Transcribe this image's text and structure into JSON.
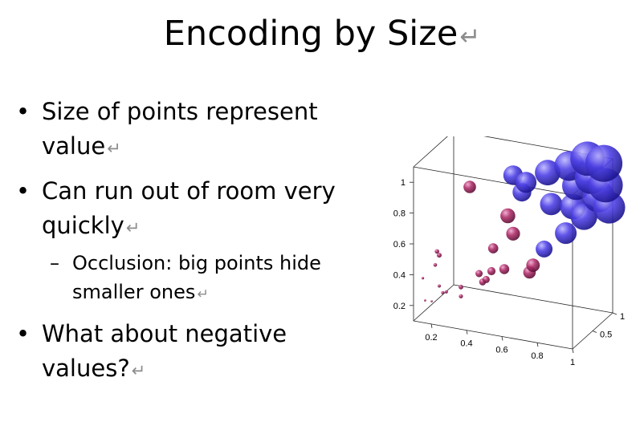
{
  "slide": {
    "title": "Encoding by Size",
    "return_glyph": "↵",
    "bullets": [
      {
        "text": "Size of points represent value"
      },
      {
        "text": "Can run out of room very quickly"
      },
      {
        "text": "Occlusion: big points hide smaller ones",
        "level": 2
      },
      {
        "text": "What about negative values?"
      }
    ],
    "bullet_glyph": "•",
    "sub_glyph": "–"
  },
  "chart_data": {
    "type": "scatter",
    "title": "",
    "xlabel": "",
    "ylabel": "",
    "zlabel": "",
    "x_ticks": [
      "0.2",
      "0.4",
      "0.6",
      "0.8",
      "1"
    ],
    "y_ticks": [
      "0.2",
      "0.4",
      "0.6",
      "0.8",
      "1"
    ],
    "z_ticks": [
      "0.5",
      "1"
    ],
    "xlim": [
      0.1,
      1.0
    ],
    "ylim": [
      0.1,
      1.1
    ],
    "zlim": [
      0,
      1
    ],
    "grid": false,
    "encoding": "marker size and color encode value",
    "colors": {
      "small": "#b0306a",
      "large": "#3a2fd6"
    },
    "points": [
      {
        "x": 0.13,
        "y": 0.36,
        "z": 0.1
      },
      {
        "x": 0.12,
        "y": 0.19,
        "z": 0.2
      },
      {
        "x": 0.18,
        "y": 0.22,
        "z": 0.1
      },
      {
        "x": 0.2,
        "y": 0.3,
        "z": 0.2
      },
      {
        "x": 0.22,
        "y": 0.26,
        "z": 0.2
      },
      {
        "x": 0.2,
        "y": 0.46,
        "z": 0.1
      },
      {
        "x": 0.21,
        "y": 0.55,
        "z": 0.1
      },
      {
        "x": 0.2,
        "y": 0.5,
        "z": 0.2
      },
      {
        "x": 0.24,
        "y": 0.27,
        "z": 0.2
      },
      {
        "x": 0.3,
        "y": 0.23,
        "z": 0.3
      },
      {
        "x": 0.3,
        "y": 0.29,
        "z": 0.3
      },
      {
        "x": 0.35,
        "y": 0.95,
        "z": 0.3
      },
      {
        "x": 0.38,
        "y": 0.37,
        "z": 0.4
      },
      {
        "x": 0.4,
        "y": 0.32,
        "z": 0.4
      },
      {
        "x": 0.42,
        "y": 0.34,
        "z": 0.4
      },
      {
        "x": 0.45,
        "y": 0.4,
        "z": 0.4
      },
      {
        "x": 0.46,
        "y": 0.55,
        "z": 0.4
      },
      {
        "x": 0.5,
        "y": 0.4,
        "z": 0.5
      },
      {
        "x": 0.52,
        "y": 0.75,
        "z": 0.5
      },
      {
        "x": 0.55,
        "y": 0.64,
        "z": 0.5
      },
      {
        "x": 0.55,
        "y": 1.02,
        "z": 0.5
      },
      {
        "x": 0.6,
        "y": 0.96,
        "z": 0.6
      },
      {
        "x": 0.6,
        "y": 0.92,
        "z": 0.5
      },
      {
        "x": 0.62,
        "y": 0.38,
        "z": 0.6
      },
      {
        "x": 0.64,
        "y": 0.43,
        "z": 0.6
      },
      {
        "x": 0.7,
        "y": 1.02,
        "z": 0.7
      },
      {
        "x": 0.68,
        "y": 0.52,
        "z": 0.7
      },
      {
        "x": 0.72,
        "y": 0.82,
        "z": 0.7
      },
      {
        "x": 0.78,
        "y": 0.62,
        "z": 0.8
      },
      {
        "x": 0.8,
        "y": 1.06,
        "z": 0.8
      },
      {
        "x": 0.82,
        "y": 0.8,
        "z": 0.8
      },
      {
        "x": 0.84,
        "y": 0.94,
        "z": 0.8
      },
      {
        "x": 0.86,
        "y": 0.72,
        "z": 0.9
      },
      {
        "x": 0.88,
        "y": 1.1,
        "z": 0.9
      },
      {
        "x": 0.9,
        "y": 0.98,
        "z": 0.9
      },
      {
        "x": 0.92,
        "y": 0.84,
        "z": 1.0
      },
      {
        "x": 0.95,
        "y": 1.06,
        "z": 1.0
      },
      {
        "x": 0.96,
        "y": 0.92,
        "z": 1.0
      },
      {
        "x": 0.98,
        "y": 0.78,
        "z": 1.0
      }
    ]
  }
}
